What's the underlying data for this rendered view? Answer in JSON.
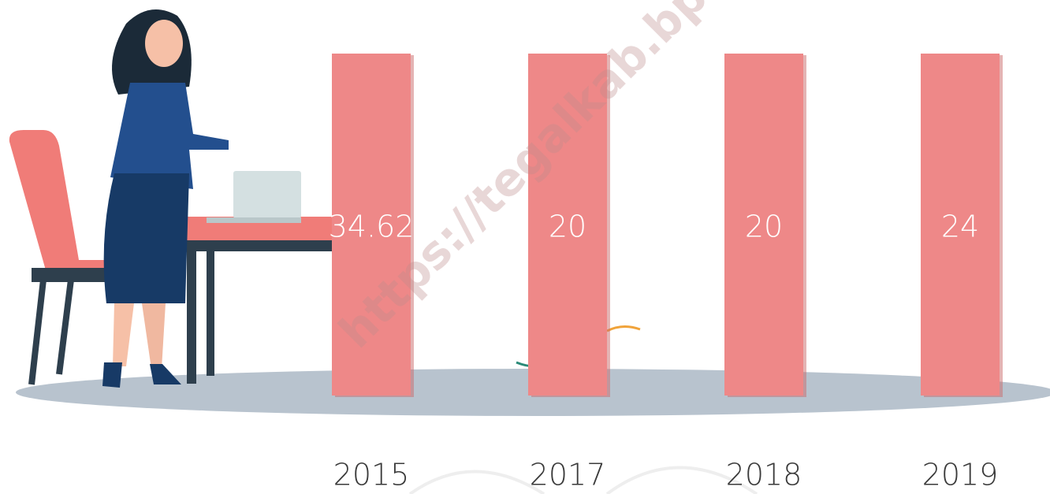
{
  "watermark": "https://tegalkab.bps.g",
  "items": [
    {
      "year": "2015",
      "value": 34.62
    },
    {
      "year": "2017",
      "value": 20
    },
    {
      "year": "2018",
      "value": 20
    },
    {
      "year": "2019",
      "value": 24
    }
  ]
}
